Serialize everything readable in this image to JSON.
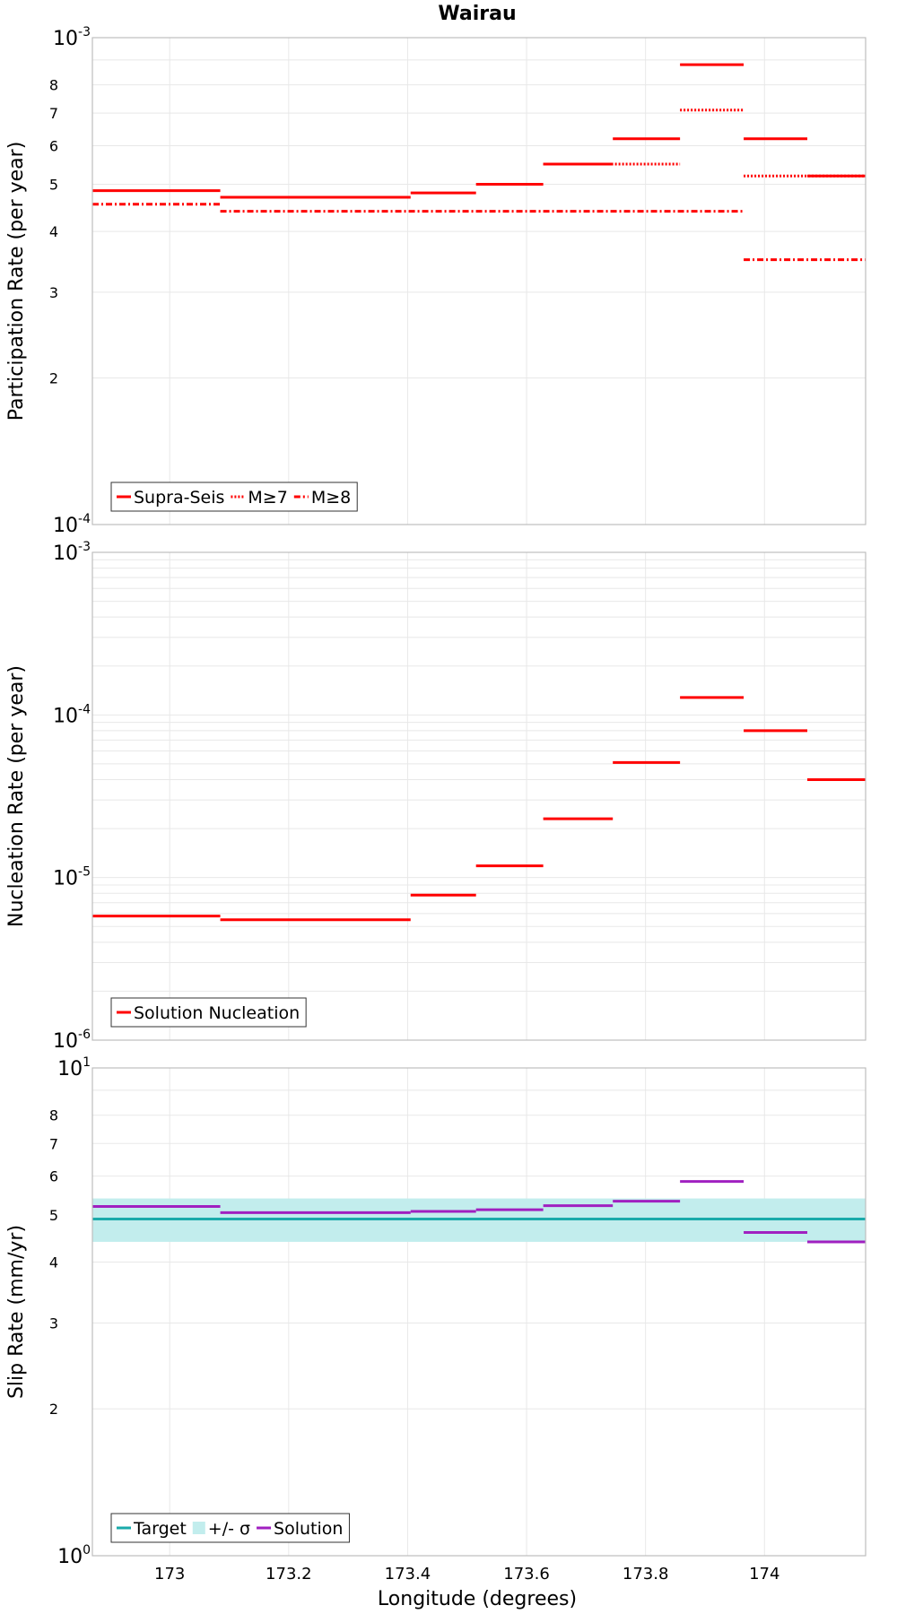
{
  "chart_data": {
    "title": "Wairau",
    "xlabel": "Longitude (degrees)",
    "xlim": [
      172.87,
      174.17
    ],
    "xticks": [
      {
        "v": 173,
        "label": "173"
      },
      {
        "v": 173.2,
        "label": "173.2"
      },
      {
        "v": 173.4,
        "label": "173.4"
      },
      {
        "v": 173.6,
        "label": "173.6"
      },
      {
        "v": 173.8,
        "label": "173.8"
      },
      {
        "v": 174,
        "label": "174"
      }
    ],
    "panels": [
      {
        "type": "line",
        "scale": "log",
        "ylabel": "Participation Rate (per year)",
        "ylim": [
          0.0001,
          0.001
        ],
        "bottom_label": {
          "base": "10",
          "exp": "-4"
        },
        "top_label": {
          "base": "10",
          "exp": "-3"
        },
        "minor_labels": [
          {
            "v": 0.0002,
            "label": "2"
          },
          {
            "v": 0.0003,
            "label": "3"
          },
          {
            "v": 0.0004,
            "label": "4"
          },
          {
            "v": 0.0005,
            "label": "5"
          },
          {
            "v": 0.0006,
            "label": "6"
          },
          {
            "v": 0.0007,
            "label": "7"
          },
          {
            "v": 0.0008,
            "label": "8"
          }
        ],
        "series": [
          {
            "name": "Supra-Seis",
            "color": "#ff0000",
            "dash": "solid",
            "segments": [
              {
                "x0": 172.87,
                "x1": 173.085,
                "y": 0.000485
              },
              {
                "x0": 173.085,
                "x1": 173.405,
                "y": 0.00047
              },
              {
                "x0": 173.405,
                "x1": 173.515,
                "y": 0.00048
              },
              {
                "x0": 173.515,
                "x1": 173.628,
                "y": 0.0005
              },
              {
                "x0": 173.628,
                "x1": 173.745,
                "y": 0.00055
              },
              {
                "x0": 173.745,
                "x1": 173.858,
                "y": 0.00062
              },
              {
                "x0": 173.858,
                "x1": 173.965,
                "y": 0.00088
              },
              {
                "x0": 173.965,
                "x1": 174.072,
                "y": 0.00062
              },
              {
                "x0": 174.072,
                "x1": 174.17,
                "y": 0.00052
              }
            ]
          },
          {
            "name": "M≥7",
            "color": "#ff0000",
            "dash": "dotted",
            "segments": [
              {
                "x0": 173.628,
                "x1": 173.858,
                "y": 0.00055
              },
              {
                "x0": 173.858,
                "x1": 173.965,
                "y": 0.00071
              },
              {
                "x0": 173.965,
                "x1": 174.17,
                "y": 0.00052
              }
            ]
          },
          {
            "name": "M≥8",
            "color": "#ff0000",
            "dash": "dashdot",
            "segments": [
              {
                "x0": 172.87,
                "x1": 173.085,
                "y": 0.000455
              },
              {
                "x0": 173.085,
                "x1": 173.965,
                "y": 0.00044
              },
              {
                "x0": 173.965,
                "x1": 174.17,
                "y": 0.00035
              }
            ]
          }
        ],
        "legend": [
          {
            "label": "Supra-Seis",
            "kind": "line",
            "color": "#ff0000",
            "dash": "solid"
          },
          {
            "label": "M≥7",
            "kind": "line",
            "color": "#ff0000",
            "dash": "dotted"
          },
          {
            "label": "M≥8",
            "kind": "line",
            "color": "#ff0000",
            "dash": "dashdot"
          }
        ],
        "legend_position": "bottom-left"
      },
      {
        "type": "line",
        "scale": "log",
        "ylabel": "Nucleation Rate (per year)",
        "ylim": [
          1e-06,
          0.001
        ],
        "bottom_label": {
          "base": "10",
          "exp": "-6"
        },
        "top_label": {
          "base": "10",
          "exp": "-3"
        },
        "major_labels": [
          {
            "v": 1e-05,
            "base": "10",
            "exp": "-5"
          },
          {
            "v": 0.0001,
            "base": "10",
            "exp": "-4"
          }
        ],
        "minor_labels": [],
        "series": [
          {
            "name": "Solution Nucleation",
            "color": "#ff0000",
            "dash": "solid",
            "segments": [
              {
                "x0": 172.87,
                "x1": 173.085,
                "y": 5.8e-06
              },
              {
                "x0": 173.085,
                "x1": 173.405,
                "y": 5.5e-06
              },
              {
                "x0": 173.405,
                "x1": 173.515,
                "y": 7.8e-06
              },
              {
                "x0": 173.515,
                "x1": 173.628,
                "y": 1.18e-05
              },
              {
                "x0": 173.628,
                "x1": 173.745,
                "y": 2.3e-05
              },
              {
                "x0": 173.745,
                "x1": 173.858,
                "y": 5.1e-05
              },
              {
                "x0": 173.858,
                "x1": 173.965,
                "y": 0.000128
              },
              {
                "x0": 173.965,
                "x1": 174.072,
                "y": 8e-05
              },
              {
                "x0": 174.072,
                "x1": 174.17,
                "y": 4e-05
              }
            ]
          }
        ],
        "legend": [
          {
            "label": "Solution Nucleation",
            "kind": "line",
            "color": "#ff0000",
            "dash": "solid"
          }
        ],
        "legend_position": "bottom-left"
      },
      {
        "type": "line",
        "scale": "log",
        "ylabel": "Slip Rate (mm/yr)",
        "ylim": [
          1,
          10
        ],
        "bottom_label": {
          "base": "10",
          "exp": "0"
        },
        "top_label": {
          "base": "10",
          "exp": "1"
        },
        "minor_labels": [
          {
            "v": 2,
            "label": "2"
          },
          {
            "v": 3,
            "label": "3"
          },
          {
            "v": 4,
            "label": "4"
          },
          {
            "v": 5,
            "label": "5"
          },
          {
            "v": 6,
            "label": "6"
          },
          {
            "v": 7,
            "label": "7"
          },
          {
            "v": 8,
            "label": "8"
          }
        ],
        "band": {
          "name": "+/- σ",
          "color": "#c2eded",
          "x0": 172.87,
          "x1": 174.17,
          "y0": 4.4,
          "y1": 5.4
        },
        "series": [
          {
            "name": "Target",
            "color": "#1aaaaa",
            "dash": "solid",
            "segments": [
              {
                "x0": 172.87,
                "x1": 174.17,
                "y": 4.9
              }
            ]
          },
          {
            "name": "Solution",
            "color": "#a020c0",
            "dash": "solid",
            "segments": [
              {
                "x0": 172.87,
                "x1": 173.085,
                "y": 5.2
              },
              {
                "x0": 173.085,
                "x1": 173.405,
                "y": 5.05
              },
              {
                "x0": 173.405,
                "x1": 173.515,
                "y": 5.08
              },
              {
                "x0": 173.515,
                "x1": 173.628,
                "y": 5.12
              },
              {
                "x0": 173.628,
                "x1": 173.745,
                "y": 5.22
              },
              {
                "x0": 173.745,
                "x1": 173.858,
                "y": 5.33
              },
              {
                "x0": 173.858,
                "x1": 173.965,
                "y": 5.85
              },
              {
                "x0": 173.965,
                "x1": 174.072,
                "y": 4.6
              },
              {
                "x0": 174.072,
                "x1": 174.17,
                "y": 4.4
              }
            ]
          }
        ],
        "legend": [
          {
            "label": "Target",
            "kind": "line",
            "color": "#1aaaaa",
            "dash": "solid"
          },
          {
            "label": "+/- σ",
            "kind": "box",
            "color": "#c2eded"
          },
          {
            "label": "Solution",
            "kind": "line",
            "color": "#a020c0",
            "dash": "solid"
          }
        ],
        "legend_position": "bottom-left"
      }
    ]
  }
}
